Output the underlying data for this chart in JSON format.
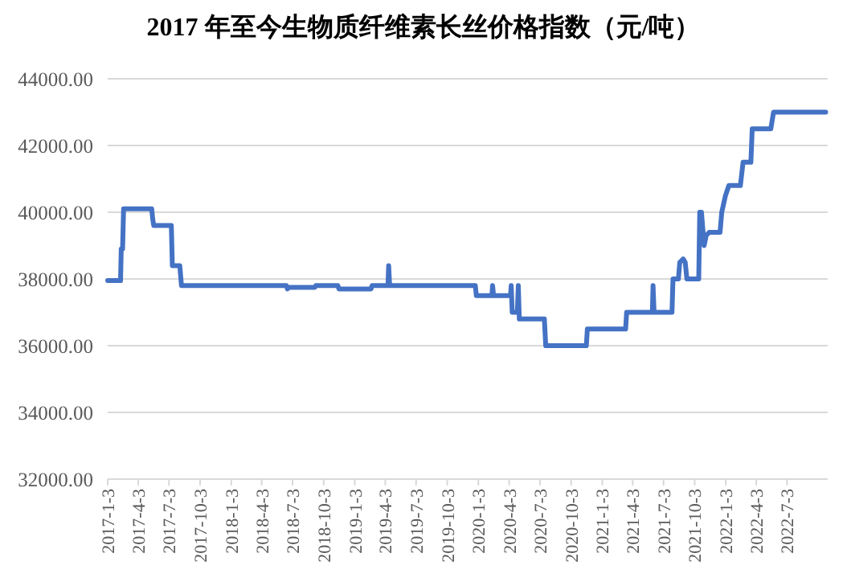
{
  "chart_data": {
    "type": "line",
    "title": "2017 年至今生物质纤维素长丝价格指数（元/吨）",
    "x": [
      "2017-01-03",
      "2017-02-10",
      "2017-02-12",
      "2017-02-16",
      "2017-02-19",
      "2017-05-13",
      "2017-05-16",
      "2017-05-19",
      "2017-07-10",
      "2017-07-13",
      "2017-08-04",
      "2017-08-09",
      "2018-06-15",
      "2018-06-18",
      "2018-06-23",
      "2018-09-07",
      "2018-09-10",
      "2018-11-14",
      "2018-11-17",
      "2019-02-20",
      "2019-02-23",
      "2019-04-11",
      "2019-04-13",
      "2019-04-16",
      "2019-12-25",
      "2019-12-28",
      "2020-02-12",
      "2020-02-14",
      "2020-02-17",
      "2020-04-07",
      "2020-04-09",
      "2020-04-12",
      "2020-04-27",
      "2020-04-30",
      "2020-05-03",
      "2020-07-16",
      "2020-07-20",
      "2020-11-17",
      "2020-11-20",
      "2021-03-13",
      "2021-03-16",
      "2021-05-31",
      "2021-06-02",
      "2021-06-05",
      "2021-07-28",
      "2021-07-31",
      "2021-08-16",
      "2021-08-20",
      "2021-08-30",
      "2021-09-05",
      "2021-09-10",
      "2021-10-15",
      "2021-10-18",
      "2021-10-23",
      "2021-10-31",
      "2021-11-06",
      "2021-11-15",
      "2021-12-17",
      "2021-12-22",
      "2022-01-02",
      "2022-01-12",
      "2022-02-15",
      "2022-02-23",
      "2022-03-18",
      "2022-03-22",
      "2022-05-16",
      "2022-05-24",
      "2022-10-25"
    ],
    "series": [
      {
        "color": "#4472c4",
        "values": [
          37950,
          37950,
          38900,
          38900,
          40100,
          40100,
          39800,
          39600,
          39600,
          38400,
          38400,
          37800,
          37800,
          37700,
          37750,
          37750,
          37800,
          37800,
          37700,
          37700,
          37800,
          37800,
          38400,
          37800,
          37800,
          37500,
          37500,
          37800,
          37500,
          37500,
          37800,
          37000,
          37000,
          37800,
          36800,
          36800,
          36000,
          36000,
          36500,
          36500,
          37000,
          37000,
          37800,
          37000,
          37000,
          38000,
          38000,
          38500,
          38600,
          38500,
          38000,
          38000,
          40000,
          40000,
          39000,
          39300,
          39400,
          39400,
          40000,
          40500,
          40800,
          40800,
          41500,
          41500,
          42500,
          42500,
          43000,
          43000
        ]
      }
    ],
    "xlim": [
      "2017-01-03",
      "2022-10-31"
    ],
    "xticks": [
      {
        "value": "2017-01-03",
        "label": "2017-1-3"
      },
      {
        "value": "2017-04-03",
        "label": "2017-4-3"
      },
      {
        "value": "2017-07-03",
        "label": "2017-7-3"
      },
      {
        "value": "2017-10-03",
        "label": "2017-10-3"
      },
      {
        "value": "2018-01-03",
        "label": "2018-1-3"
      },
      {
        "value": "2018-04-03",
        "label": "2018-4-3"
      },
      {
        "value": "2018-07-03",
        "label": "2018-7-3"
      },
      {
        "value": "2018-10-03",
        "label": "2018-10-3"
      },
      {
        "value": "2019-01-03",
        "label": "2019-1-3"
      },
      {
        "value": "2019-04-03",
        "label": "2019-4-3"
      },
      {
        "value": "2019-07-03",
        "label": "2019-7-3"
      },
      {
        "value": "2019-10-03",
        "label": "2019-10-3"
      },
      {
        "value": "2020-01-03",
        "label": "2020-1-3"
      },
      {
        "value": "2020-04-03",
        "label": "2020-4-3"
      },
      {
        "value": "2020-07-03",
        "label": "2020-7-3"
      },
      {
        "value": "2020-10-03",
        "label": "2020-10-3"
      },
      {
        "value": "2021-01-03",
        "label": "2021-1-3"
      },
      {
        "value": "2021-04-03",
        "label": "2021-4-3"
      },
      {
        "value": "2021-07-03",
        "label": "2021-7-3"
      },
      {
        "value": "2021-10-03",
        "label": "2021-10-3"
      },
      {
        "value": "2022-01-03",
        "label": "2022-1-3"
      },
      {
        "value": "2022-04-03",
        "label": "2022-4-3"
      },
      {
        "value": "2022-07-03",
        "label": "2022-7-3"
      }
    ],
    "ylim": [
      32000,
      44000
    ],
    "yticks": [
      {
        "value": 32000,
        "label": "32000.00"
      },
      {
        "value": 34000,
        "label": "34000.00"
      },
      {
        "value": 36000,
        "label": "36000.00"
      },
      {
        "value": 38000,
        "label": "38000.00"
      },
      {
        "value": 40000,
        "label": "40000.00"
      },
      {
        "value": 42000,
        "label": "42000.00"
      },
      {
        "value": 44000,
        "label": "44000.00"
      }
    ],
    "grid": "y"
  }
}
